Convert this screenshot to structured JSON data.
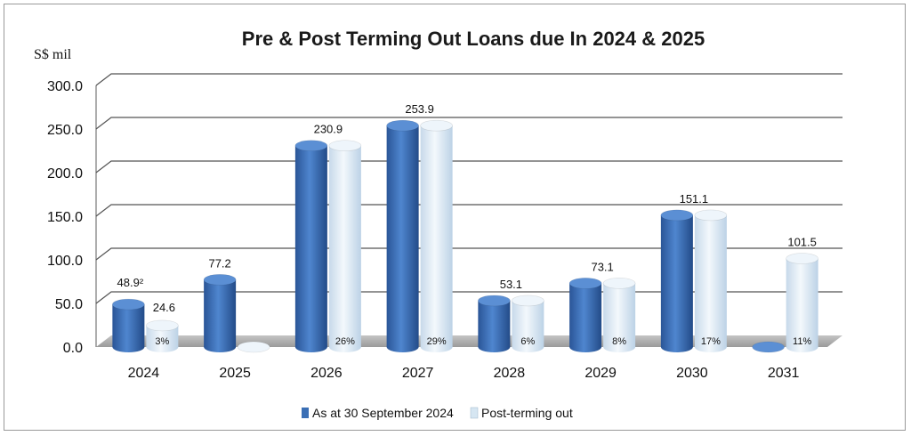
{
  "chart_data": {
    "type": "bar",
    "title": "Pre & Post Terming Out Loans due In 2024 & 2025",
    "ylabel": "S$ mil",
    "ylim": [
      0,
      300
    ],
    "yticks": [
      "0.0",
      "50.0",
      "100.0",
      "150.0",
      "200.0",
      "250.0",
      "300.0"
    ],
    "categories": [
      "2024",
      "2025",
      "2026",
      "2027",
      "2028",
      "2029",
      "2030",
      "2031"
    ],
    "series": [
      {
        "name": "As at 30 September 2024",
        "color": "#3a6fb5",
        "values": [
          48.9,
          77.2,
          230.9,
          253.9,
          53.1,
          73.1,
          151.1,
          0
        ]
      },
      {
        "name": "Post-terming out",
        "color": "#d6e6f2",
        "values": [
          24.6,
          0,
          230.9,
          253.9,
          53.1,
          73.1,
          151.1,
          101.5
        ]
      }
    ],
    "value_labels": [
      "48.9²",
      "77.2",
      "230.9",
      "253.9",
      "53.1",
      "73.1",
      "151.1",
      "101.5"
    ],
    "post_value_label_2024": "24.6",
    "percent_labels": [
      "3%",
      "",
      "26%",
      "29%",
      "6%",
      "8%",
      "17%",
      "11%"
    ],
    "grid": true,
    "legend_position": "bottom"
  }
}
